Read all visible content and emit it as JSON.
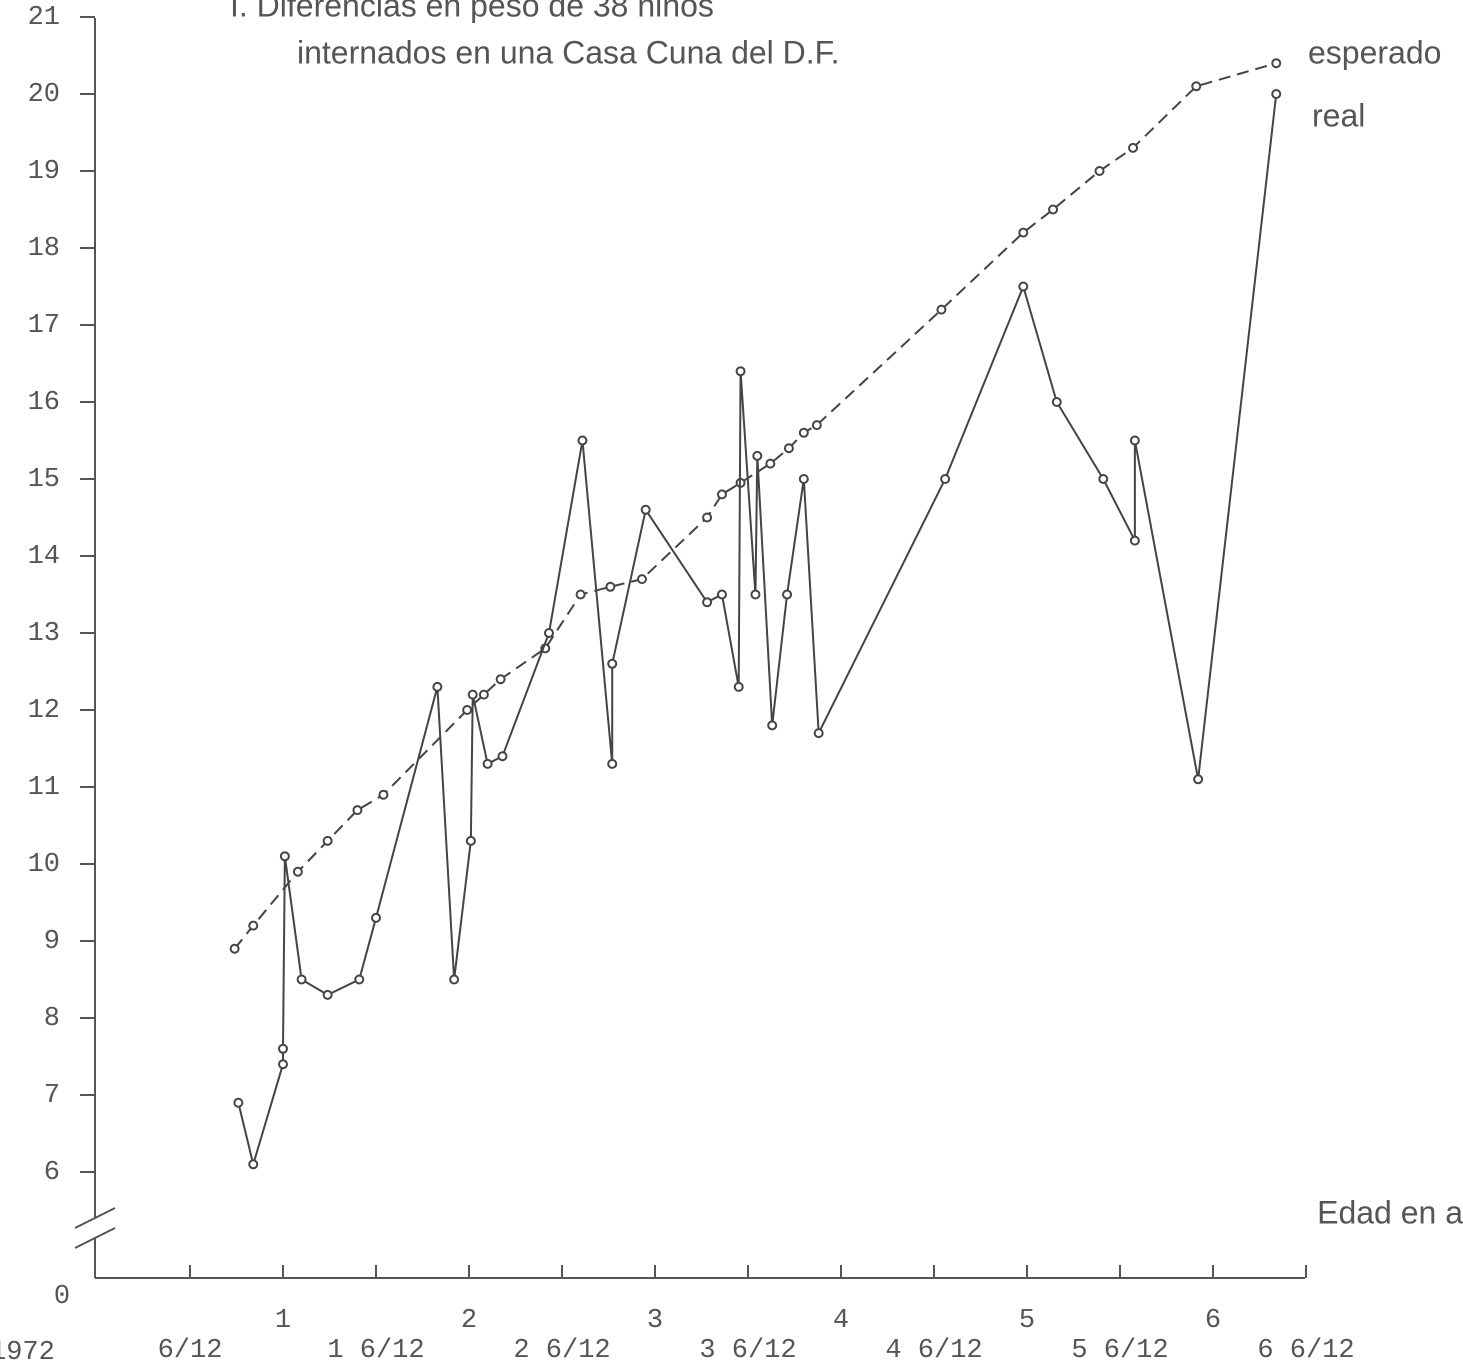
{
  "chart_data": {
    "type": "line",
    "title_lines": [
      "I. Diferencias en peso de 38 niños",
      "internados en una Casa Cuna del D.F."
    ],
    "x_label": "Edad en a",
    "x_origin_label": "1972",
    "y_break_label": "0",
    "xlim": [
      0,
      6.5
    ],
    "ylim": [
      6,
      21
    ],
    "yticks": [
      6,
      7,
      8,
      9,
      10,
      11,
      12,
      13,
      14,
      15,
      16,
      17,
      18,
      19,
      20,
      21
    ],
    "xticks": [
      {
        "value": 0.5,
        "label": "6/12"
      },
      1,
      {
        "value": 1.5,
        "label": "1 6/12"
      },
      2,
      {
        "value": 2.5,
        "label": "2 6/12"
      },
      3,
      {
        "value": 3.5,
        "label": "3 6/12"
      },
      4,
      {
        "value": 4.5,
        "label": "4 6/12"
      },
      5,
      {
        "value": 5.5,
        "label": "5 6/12"
      },
      6,
      {
        "value": 6.5,
        "label": "6 6/12"
      }
    ],
    "series": [
      {
        "name": "esperado",
        "color": "#444444",
        "dash": true,
        "x": [
          0.74,
          0.84,
          1.08,
          1.24,
          1.4,
          1.54,
          1.99,
          2.08,
          2.17,
          2.41,
          2.6,
          2.76,
          2.93,
          3.28,
          3.36,
          3.46,
          3.62,
          3.72,
          3.8,
          3.87,
          4.54,
          4.98,
          5.14,
          5.39,
          5.57,
          5.91,
          6.34
        ],
        "values": [
          8.9,
          9.2,
          9.9,
          10.3,
          10.7,
          10.9,
          12.0,
          12.2,
          12.4,
          12.8,
          13.5,
          13.6,
          13.7,
          14.5,
          14.8,
          14.95,
          15.2,
          15.4,
          15.6,
          15.7,
          17.2,
          18.2,
          18.5,
          19.0,
          19.3,
          20.1,
          20.4
        ]
      },
      {
        "name": "real",
        "color": "#444444",
        "dash": false,
        "x": [
          0.76,
          0.84,
          1.0,
          1.0,
          1.01,
          1.1,
          1.24,
          1.41,
          1.5,
          1.83,
          1.92,
          2.01,
          2.02,
          2.1,
          2.18,
          2.43,
          2.61,
          2.77,
          2.77,
          2.95,
          3.28,
          3.36,
          3.45,
          3.46,
          3.54,
          3.55,
          3.63,
          3.71,
          3.8,
          3.88,
          4.56,
          4.98,
          5.16,
          5.41,
          5.58,
          5.58,
          5.92,
          6.34
        ],
        "values": [
          6.9,
          6.1,
          7.4,
          7.6,
          10.1,
          8.5,
          8.3,
          8.5,
          9.3,
          12.3,
          8.5,
          10.3,
          12.2,
          11.3,
          11.4,
          13.0,
          15.5,
          11.3,
          12.6,
          14.6,
          13.4,
          13.5,
          12.3,
          16.4,
          13.5,
          15.3,
          11.8,
          13.5,
          15.0,
          11.7,
          15.0,
          17.5,
          16.0,
          15.0,
          14.2,
          15.5,
          11.1,
          20.0
        ]
      }
    ]
  }
}
